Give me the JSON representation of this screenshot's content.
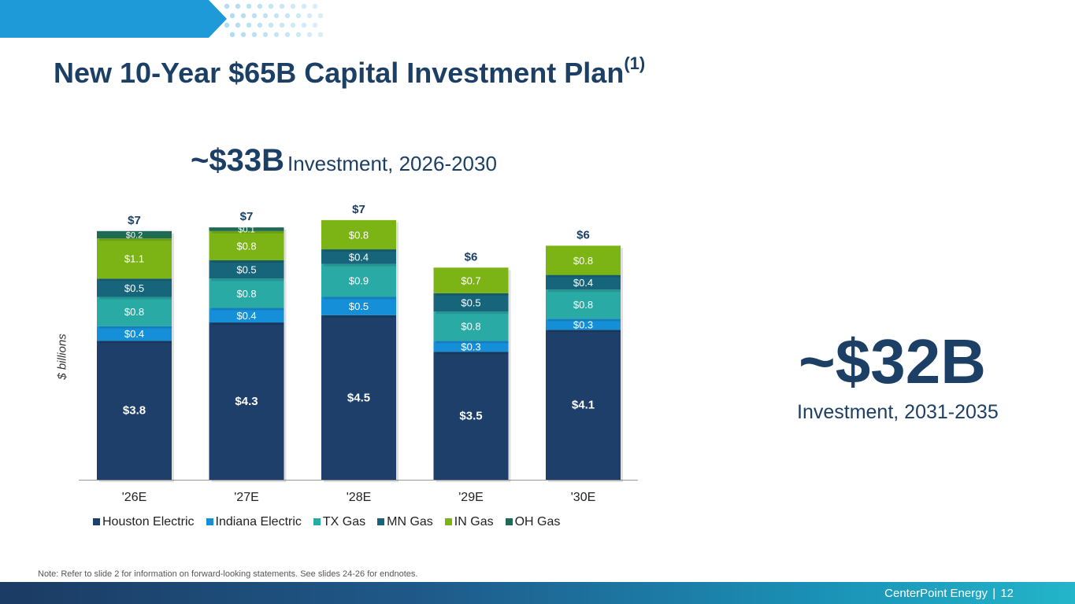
{
  "slide": {
    "title": "New 10-Year $65B Capital Investment Plan",
    "title_superscript": "(1)",
    "left_headline_big": "~$33B",
    "left_headline_small": "Investment, 2026-2030",
    "right_big": "~$32B",
    "right_sub": "Investment, 2031-2035",
    "note": "Note: Refer to slide 2 for information on forward-looking statements. See slides 24-26 for endnotes.",
    "footer_company": "CenterPoint Energy",
    "footer_sep": "|",
    "footer_page": "12"
  },
  "colors": {
    "title": "#1c3f66",
    "banner": "#1e9ad8"
  },
  "chart_data": {
    "type": "bar",
    "stacked": true,
    "ylabel": "$ billions",
    "ylim": [
      0,
      7.5
    ],
    "categories": [
      "'26E",
      "'27E",
      "'28E",
      "'29E",
      "'30E"
    ],
    "totals": [
      "$7",
      "$7",
      "$7",
      "$6",
      "$6"
    ],
    "series": [
      {
        "name": "Houston Electric",
        "color": "#1d3f69",
        "values": [
          3.8,
          4.3,
          4.5,
          3.5,
          4.1
        ],
        "labels": [
          "$3.8",
          "$4.3",
          "$4.5",
          "$3.5",
          "$4.1"
        ]
      },
      {
        "name": "Indiana Electric",
        "color": "#1590d8",
        "values": [
          0.4,
          0.4,
          0.5,
          0.3,
          0.3
        ],
        "labels": [
          "$0.4",
          "$0.4",
          "$0.5",
          "$0.3",
          "$0.3"
        ]
      },
      {
        "name": "TX Gas",
        "color": "#2aaaa5",
        "values": [
          0.8,
          0.8,
          0.9,
          0.8,
          0.8
        ],
        "labels": [
          "$0.8",
          "$0.8",
          "$0.9",
          "$0.8",
          "$0.8"
        ]
      },
      {
        "name": "MN Gas",
        "color": "#17657a",
        "values": [
          0.5,
          0.5,
          0.4,
          0.5,
          0.4
        ],
        "labels": [
          "$0.5",
          "$0.5",
          "$0.4",
          "$0.5",
          "$0.4"
        ]
      },
      {
        "name": "IN Gas",
        "color": "#7cb416",
        "values": [
          1.1,
          0.8,
          0.8,
          0.7,
          0.8
        ],
        "labels": [
          "$1.1",
          "$0.8",
          "$0.8",
          "$0.7",
          "$0.8"
        ]
      },
      {
        "name": "OH Gas",
        "color": "#1f6a55",
        "values": [
          0.2,
          0.1,
          0,
          0,
          0
        ],
        "labels": [
          "$0.2",
          "$0.1",
          "",
          "",
          ""
        ]
      }
    ]
  }
}
